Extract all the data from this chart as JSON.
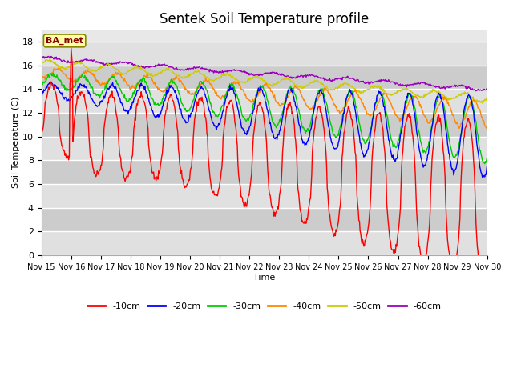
{
  "title": "Sentek Soil Temperature profile",
  "xlabel": "Time",
  "ylabel": "Soil Temperature (C)",
  "ylim": [
    0,
    19
  ],
  "yticks": [
    0,
    2,
    4,
    6,
    8,
    10,
    12,
    14,
    16,
    18
  ],
  "legend_label": "BA_met",
  "colors": {
    "-10cm": "#ff0000",
    "-20cm": "#0000ff",
    "-30cm": "#00cc00",
    "-40cm": "#ff8800",
    "-50cm": "#cccc00",
    "-60cm": "#9900bb"
  },
  "background_color": "#ffffff",
  "plot_bg_light": "#f0f0f0",
  "plot_bg_dark": "#dddddd",
  "band_colors": [
    "#e8e8e8",
    "#d0d0d0"
  ],
  "n_points": 720
}
